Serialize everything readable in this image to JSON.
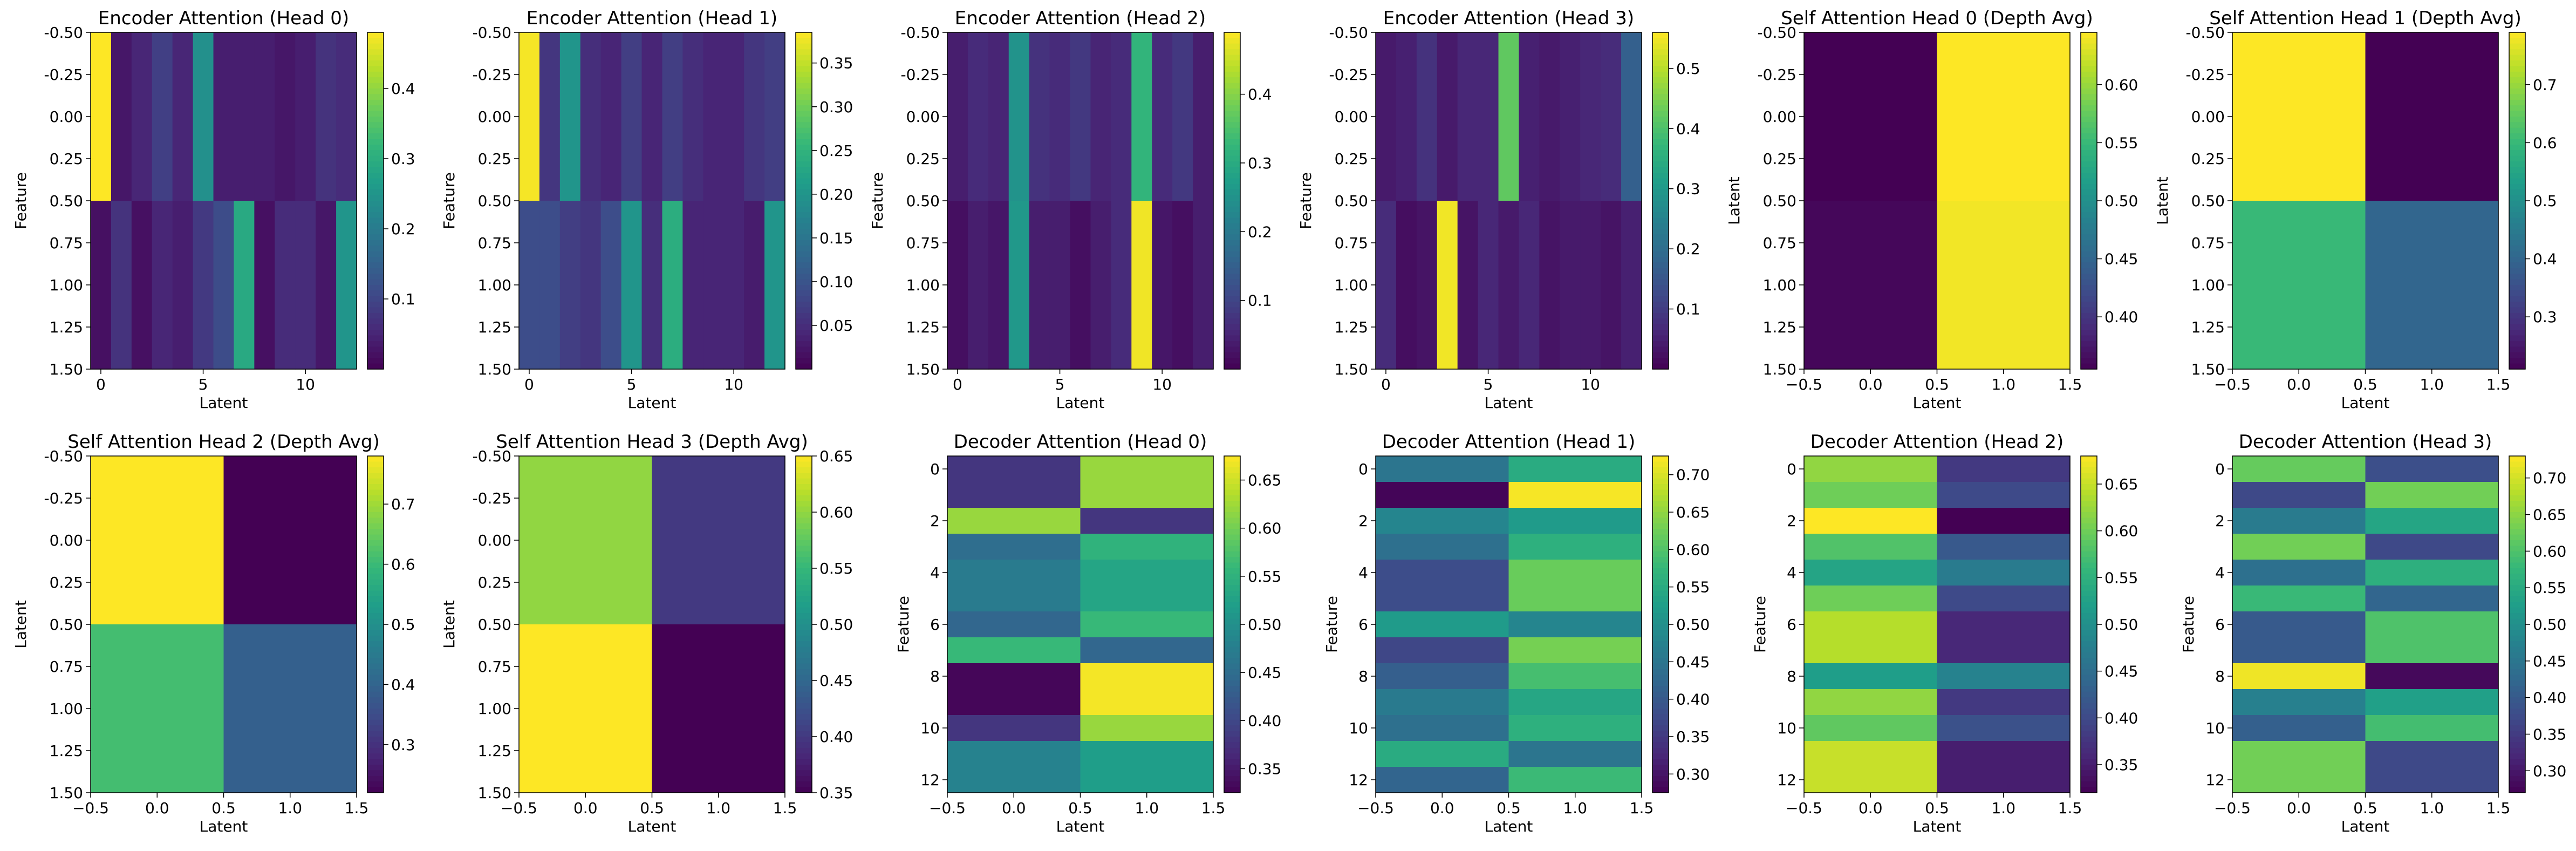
{
  "colormap": "viridis",
  "chart_data": [
    {
      "type": "heatmap",
      "title": "Encoder Attention (Head 0)",
      "xlabel": "Latent",
      "ylabel": "Feature",
      "x_ticks": [
        "0",
        "5",
        "10"
      ],
      "y_ticks": [
        "-0.50",
        "-0.25",
        "0.00",
        "0.25",
        "0.50",
        "0.75",
        "1.00",
        "1.25",
        "1.50"
      ],
      "colorbar_ticks": [
        "0.1",
        "0.2",
        "0.3",
        "0.4"
      ],
      "vmin": 0.0,
      "vmax": 0.48,
      "values": [
        [
          0.48,
          0.03,
          0.05,
          0.09,
          0.05,
          0.24,
          0.04,
          0.04,
          0.04,
          0.03,
          0.04,
          0.07,
          0.06
        ],
        [
          0.02,
          0.07,
          0.02,
          0.05,
          0.04,
          0.08,
          0.11,
          0.29,
          0.02,
          0.06,
          0.06,
          0.03,
          0.25
        ]
      ]
    },
    {
      "type": "heatmap",
      "title": "Encoder Attention (Head 1)",
      "xlabel": "Latent",
      "ylabel": "Feature",
      "x_ticks": [
        "0",
        "5",
        "10"
      ],
      "y_ticks": [
        "-0.50",
        "-0.25",
        "0.00",
        "0.25",
        "0.50",
        "0.75",
        "1.00",
        "1.25",
        "1.50"
      ],
      "colorbar_ticks": [
        "0.05",
        "0.10",
        "0.15",
        "0.20",
        "0.25",
        "0.30",
        "0.35"
      ],
      "vmin": 0.0,
      "vmax": 0.385,
      "values": [
        [
          0.38,
          0.06,
          0.2,
          0.05,
          0.04,
          0.07,
          0.04,
          0.07,
          0.05,
          0.04,
          0.04,
          0.06,
          0.07
        ],
        [
          0.09,
          0.09,
          0.07,
          0.06,
          0.09,
          0.2,
          0.05,
          0.24,
          0.04,
          0.04,
          0.04,
          0.03,
          0.2
        ]
      ]
    },
    {
      "type": "heatmap",
      "title": "Encoder Attention (Head 2)",
      "xlabel": "Latent",
      "ylabel": "Feature",
      "x_ticks": [
        "0",
        "5",
        "10"
      ],
      "y_ticks": [
        "-0.50",
        "-0.25",
        "0.00",
        "0.25",
        "0.50",
        "0.75",
        "1.00",
        "1.25",
        "1.50"
      ],
      "colorbar_ticks": [
        "0.1",
        "0.2",
        "0.3",
        "0.4"
      ],
      "vmin": 0.0,
      "vmax": 0.49,
      "values": [
        [
          0.04,
          0.06,
          0.05,
          0.25,
          0.07,
          0.06,
          0.08,
          0.05,
          0.06,
          0.32,
          0.06,
          0.08,
          0.04
        ],
        [
          0.02,
          0.04,
          0.03,
          0.26,
          0.04,
          0.04,
          0.02,
          0.04,
          0.06,
          0.48,
          0.03,
          0.02,
          0.04
        ]
      ]
    },
    {
      "type": "heatmap",
      "title": "Encoder Attention (Head 3)",
      "xlabel": "Latent",
      "ylabel": "Feature",
      "x_ticks": [
        "0",
        "5",
        "10"
      ],
      "y_ticks": [
        "-0.50",
        "-0.25",
        "0.00",
        "0.25",
        "0.50",
        "0.75",
        "1.00",
        "1.25",
        "1.50"
      ],
      "colorbar_ticks": [
        "0.1",
        "0.2",
        "0.3",
        "0.4",
        "0.5"
      ],
      "vmin": 0.0,
      "vmax": 0.56,
      "values": [
        [
          0.04,
          0.05,
          0.08,
          0.04,
          0.06,
          0.06,
          0.42,
          0.05,
          0.04,
          0.05,
          0.06,
          0.07,
          0.17
        ],
        [
          0.07,
          0.02,
          0.03,
          0.55,
          0.03,
          0.06,
          0.04,
          0.06,
          0.03,
          0.04,
          0.04,
          0.03,
          0.05
        ]
      ]
    },
    {
      "type": "heatmap",
      "title": "Self Attention Head 0 (Depth Avg)",
      "xlabel": "Latent",
      "ylabel": "Latent",
      "x_ticks": [
        "−0.5",
        "0.0",
        "0.5",
        "1.0",
        "1.5"
      ],
      "y_ticks": [
        "-0.50",
        "-0.25",
        "0.00",
        "0.25",
        "0.50",
        "0.75",
        "1.00",
        "1.25",
        "1.50"
      ],
      "colorbar_ticks": [
        "0.40",
        "0.45",
        "0.50",
        "0.55",
        "0.60"
      ],
      "vmin": 0.355,
      "vmax": 0.645,
      "values": [
        [
          0.355,
          0.645
        ],
        [
          0.36,
          0.64
        ]
      ]
    },
    {
      "type": "heatmap",
      "title": "Self Attention Head 1 (Depth Avg)",
      "xlabel": "Latent",
      "ylabel": "Latent",
      "x_ticks": [
        "−0.5",
        "0.0",
        "0.5",
        "1.0",
        "1.5"
      ],
      "y_ticks": [
        "-0.50",
        "-0.25",
        "0.00",
        "0.25",
        "0.50",
        "0.75",
        "1.00",
        "1.25",
        "1.50"
      ],
      "colorbar_ticks": [
        "0.3",
        "0.4",
        "0.5",
        "0.6",
        "0.7"
      ],
      "vmin": 0.21,
      "vmax": 0.79,
      "values": [
        [
          0.79,
          0.21
        ],
        [
          0.6,
          0.4
        ]
      ]
    },
    {
      "type": "heatmap",
      "title": "Self Attention Head 2 (Depth Avg)",
      "xlabel": "Latent",
      "ylabel": "Latent",
      "x_ticks": [
        "−0.5",
        "0.0",
        "0.5",
        "1.0",
        "1.5"
      ],
      "y_ticks": [
        "-0.50",
        "-0.25",
        "0.00",
        "0.25",
        "0.50",
        "0.75",
        "1.00",
        "1.25",
        "1.50"
      ],
      "colorbar_ticks": [
        "0.3",
        "0.4",
        "0.5",
        "0.6",
        "0.7"
      ],
      "vmin": 0.22,
      "vmax": 0.78,
      "values": [
        [
          0.78,
          0.22
        ],
        [
          0.61,
          0.39
        ]
      ]
    },
    {
      "type": "heatmap",
      "title": "Self Attention Head 3 (Depth Avg)",
      "xlabel": "Latent",
      "ylabel": "Latent",
      "x_ticks": [
        "−0.5",
        "0.0",
        "0.5",
        "1.0",
        "1.5"
      ],
      "y_ticks": [
        "-0.50",
        "-0.25",
        "0.00",
        "0.25",
        "0.50",
        "0.75",
        "1.00",
        "1.25",
        "1.50"
      ],
      "colorbar_ticks": [
        "0.35",
        "0.40",
        "0.45",
        "0.50",
        "0.55",
        "0.60",
        "0.65"
      ],
      "vmin": 0.35,
      "vmax": 0.65,
      "values": [
        [
          0.6,
          0.4
        ],
        [
          0.65,
          0.35
        ]
      ]
    },
    {
      "type": "heatmap",
      "title": "Decoder Attention (Head 0)",
      "xlabel": "Latent",
      "ylabel": "Feature",
      "x_ticks": [
        "−0.5",
        "0.0",
        "0.5",
        "1.0",
        "1.5"
      ],
      "y_ticks": [
        "0",
        "2",
        "4",
        "6",
        "8",
        "10",
        "12"
      ],
      "colorbar_ticks": [
        "0.35",
        "0.40",
        "0.45",
        "0.50",
        "0.55",
        "0.60",
        "0.65"
      ],
      "vmin": 0.325,
      "vmax": 0.675,
      "values": [
        [
          0.38,
          0.62
        ],
        [
          0.38,
          0.62
        ],
        [
          0.62,
          0.38
        ],
        [
          0.45,
          0.55
        ],
        [
          0.47,
          0.53
        ],
        [
          0.47,
          0.53
        ],
        [
          0.44,
          0.56
        ],
        [
          0.56,
          0.44
        ],
        [
          0.33,
          0.67
        ],
        [
          0.33,
          0.67
        ],
        [
          0.38,
          0.62
        ],
        [
          0.48,
          0.52
        ],
        [
          0.48,
          0.52
        ]
      ]
    },
    {
      "type": "heatmap",
      "title": "Decoder Attention (Head 1)",
      "xlabel": "Latent",
      "ylabel": "Feature",
      "x_ticks": [
        "−0.5",
        "0.0",
        "0.5",
        "1.0",
        "1.5"
      ],
      "y_ticks": [
        "0",
        "2",
        "4",
        "6",
        "8",
        "10",
        "12"
      ],
      "colorbar_ticks": [
        "0.30",
        "0.35",
        "0.40",
        "0.45",
        "0.50",
        "0.55",
        "0.60",
        "0.65",
        "0.70"
      ],
      "vmin": 0.275,
      "vmax": 0.725,
      "values": [
        [
          0.45,
          0.55
        ],
        [
          0.28,
          0.72
        ],
        [
          0.48,
          0.52
        ],
        [
          0.44,
          0.56
        ],
        [
          0.38,
          0.62
        ],
        [
          0.38,
          0.62
        ],
        [
          0.52,
          0.48
        ],
        [
          0.37,
          0.63
        ],
        [
          0.41,
          0.59
        ],
        [
          0.46,
          0.54
        ],
        [
          0.44,
          0.56
        ],
        [
          0.55,
          0.45
        ],
        [
          0.42,
          0.58
        ]
      ]
    },
    {
      "type": "heatmap",
      "title": "Decoder Attention (Head 2)",
      "xlabel": "Latent",
      "ylabel": "Feature",
      "x_ticks": [
        "−0.5",
        "0.0",
        "0.5",
        "1.0",
        "1.5"
      ],
      "y_ticks": [
        "0",
        "2",
        "4",
        "6",
        "8",
        "10",
        "12"
      ],
      "colorbar_ticks": [
        "0.35",
        "0.40",
        "0.45",
        "0.50",
        "0.55",
        "0.60",
        "0.65"
      ],
      "vmin": 0.32,
      "vmax": 0.68,
      "values": [
        [
          0.62,
          0.38
        ],
        [
          0.6,
          0.4
        ],
        [
          0.68,
          0.32
        ],
        [
          0.58,
          0.42
        ],
        [
          0.53,
          0.47
        ],
        [
          0.6,
          0.4
        ],
        [
          0.64,
          0.36
        ],
        [
          0.64,
          0.36
        ],
        [
          0.52,
          0.48
        ],
        [
          0.62,
          0.38
        ],
        [
          0.59,
          0.41
        ],
        [
          0.65,
          0.35
        ],
        [
          0.65,
          0.35
        ]
      ]
    },
    {
      "type": "heatmap",
      "title": "Decoder Attention (Head 3)",
      "xlabel": "Latent",
      "ylabel": "Feature",
      "x_ticks": [
        "−0.5",
        "0.0",
        "0.5",
        "1.0",
        "1.5"
      ],
      "y_ticks": [
        "0",
        "2",
        "4",
        "6",
        "8",
        "10",
        "12"
      ],
      "colorbar_ticks": [
        "0.30",
        "0.35",
        "0.40",
        "0.45",
        "0.50",
        "0.55",
        "0.60",
        "0.65",
        "0.70"
      ],
      "vmin": 0.27,
      "vmax": 0.73,
      "values": [
        [
          0.62,
          0.38
        ],
        [
          0.37,
          0.63
        ],
        [
          0.46,
          0.54
        ],
        [
          0.63,
          0.37
        ],
        [
          0.44,
          0.56
        ],
        [
          0.58,
          0.42
        ],
        [
          0.4,
          0.6
        ],
        [
          0.4,
          0.6
        ],
        [
          0.72,
          0.28
        ],
        [
          0.47,
          0.53
        ],
        [
          0.41,
          0.59
        ],
        [
          0.63,
          0.37
        ],
        [
          0.63,
          0.37
        ]
      ]
    }
  ]
}
